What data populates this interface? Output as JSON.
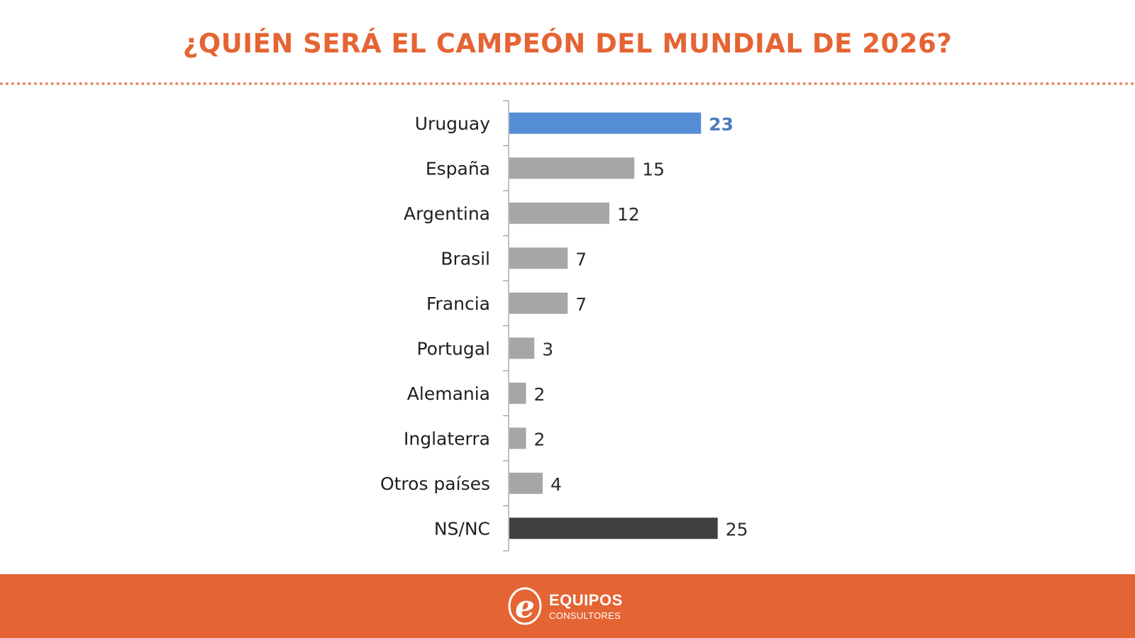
{
  "header": {
    "title": "¿QUIÉN SERÁ EL CAMPEÓN DEL MUNDIAL DE 2026?"
  },
  "footer": {
    "brand_name": "EQUIPOS",
    "brand_sub": "CONSULTORES"
  },
  "colors": {
    "accent": "#E56433",
    "highlight": "#548DD4",
    "default_bar": "#A6A6A6",
    "nsnc_bar": "#404040"
  },
  "chart_data": {
    "type": "bar",
    "orientation": "horizontal",
    "title": "¿QUIÉN SERÁ EL CAMPEÓN DEL MUNDIAL DE 2026?",
    "xlabel": "",
    "ylabel": "",
    "categories": [
      "Uruguay",
      "España",
      "Argentina",
      "Brasil",
      "Francia",
      "Portugal",
      "Alemania",
      "Inglaterra",
      "Otros países",
      "NS/NC"
    ],
    "values": [
      23,
      15,
      12,
      7,
      7,
      3,
      2,
      2,
      4,
      25
    ],
    "bar_colors": [
      "#548DD4",
      "#A6A6A6",
      "#A6A6A6",
      "#A6A6A6",
      "#A6A6A6",
      "#A6A6A6",
      "#A6A6A6",
      "#A6A6A6",
      "#A6A6A6",
      "#404040"
    ],
    "xlim": [
      0,
      25
    ],
    "grid": false,
    "legend": "none",
    "data_labels": true
  }
}
